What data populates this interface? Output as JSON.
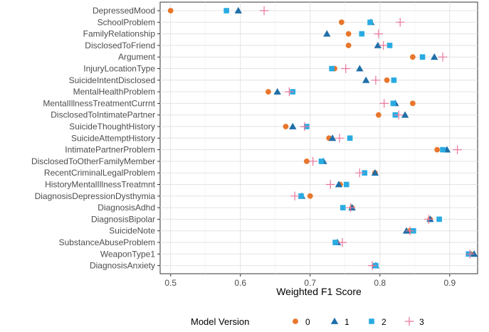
{
  "chart_data": {
    "type": "scatter",
    "xlabel": "Weighted F1 Score",
    "xlim": [
      0.485,
      0.94
    ],
    "xticks": [
      0.5,
      0.6,
      0.7,
      0.8,
      0.9
    ],
    "xtick_labels": [
      "0.5",
      "0.6",
      "0.7",
      "0.8",
      "0.9"
    ],
    "grid": true,
    "legend": {
      "title": "Model Version",
      "position": "bottom"
    },
    "categories": [
      "DepressedMood",
      "SchoolProblem",
      "FamilyRelationship",
      "DisclosedToFriend",
      "Argument",
      "InjuryLocationType",
      "SuicideIntentDisclosed",
      "MentalHealthProblem",
      "MentalIllnessTreatmentCurrnt",
      "DisclosedToIntimatePartner",
      "SuicideThoughtHistory",
      "SuicideAttemptHistory",
      "IntimatePartnerProblem",
      "DisclosedToOtherFamilyMember",
      "RecentCriminalLegalProblem",
      "HistoryMentalIllnessTreatmnt",
      "DiagnosisDepressionDysthymia",
      "DiagnosisAdhd",
      "DiagnosisBipolar",
      "SuicideNote",
      "SubstanceAbuseProblem",
      "WeaponType1",
      "DiagnosisAnxiety"
    ],
    "series": [
      {
        "name": "0",
        "shape": "circle",
        "color": "#E8762C",
        "values": [
          0.5,
          0.745,
          0.755,
          0.755,
          0.847,
          0.735,
          0.81,
          0.64,
          0.847,
          0.798,
          0.665,
          0.727,
          0.882,
          0.695,
          0.793,
          0.743,
          0.7,
          0.76,
          0.872,
          0.843,
          0.738,
          0.93,
          0.793
        ]
      },
      {
        "name": "1",
        "shape": "triangle",
        "color": "#1F6FA8",
        "values": [
          0.597,
          0.787,
          0.724,
          0.797,
          0.878,
          0.771,
          0.78,
          0.653,
          0.822,
          0.836,
          0.675,
          0.732,
          0.896,
          0.719,
          0.793,
          0.741,
          0.688,
          0.76,
          0.872,
          0.838,
          0.739,
          0.935,
          0.794
        ]
      },
      {
        "name": "2",
        "shape": "square",
        "color": "#29ABE2",
        "values": [
          0.58,
          0.786,
          0.774,
          0.814,
          0.861,
          0.731,
          0.82,
          0.675,
          0.819,
          0.822,
          0.695,
          0.757,
          0.89,
          0.716,
          0.778,
          0.752,
          0.687,
          0.747,
          0.885,
          0.848,
          0.736,
          0.927,
          0.794
        ]
      },
      {
        "name": "3",
        "shape": "plus",
        "color": "#E8769A",
        "values": [
          0.634,
          0.829,
          0.798,
          0.805,
          0.89,
          0.751,
          0.794,
          0.67,
          0.806,
          0.827,
          0.692,
          0.742,
          0.911,
          0.704,
          0.771,
          0.729,
          0.678,
          0.758,
          0.87,
          0.843,
          0.746,
          0.929,
          0.789
        ]
      }
    ]
  }
}
